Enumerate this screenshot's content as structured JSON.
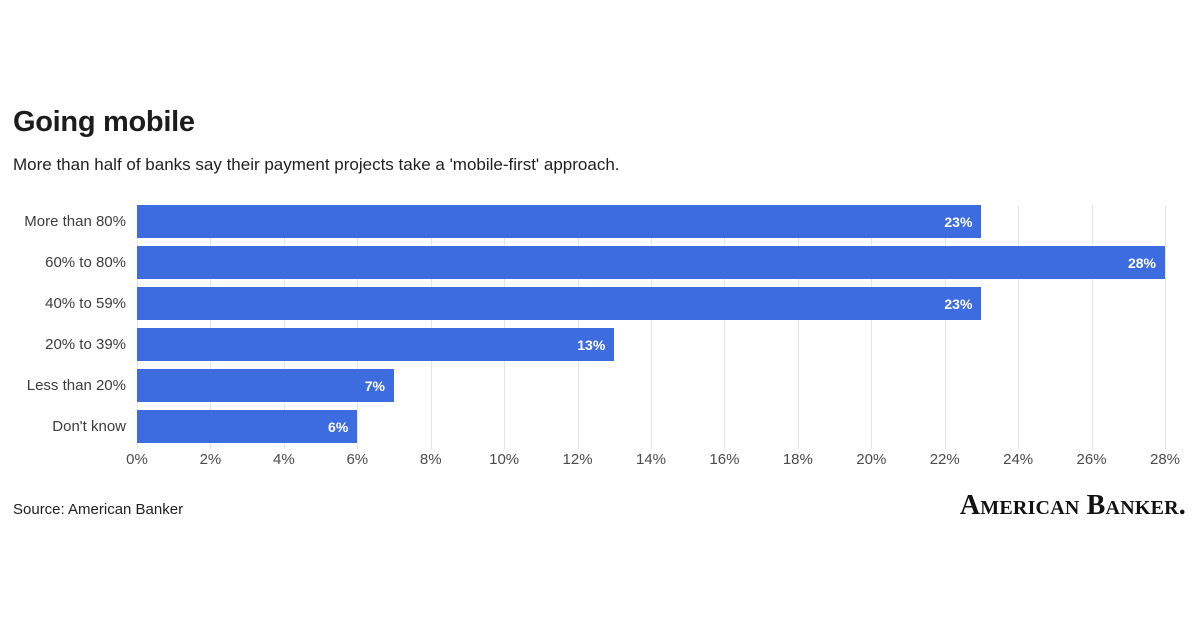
{
  "chart_data": {
    "type": "bar",
    "orientation": "horizontal",
    "title": "Going mobile",
    "subtitle": "More than half of banks say their payment projects take a 'mobile-first' approach.",
    "categories": [
      "More than 80%",
      "60% to 80%",
      "40% to 59%",
      "20% to 39%",
      "Less than 20%",
      "Don't know"
    ],
    "values": [
      23,
      28,
      23,
      13,
      7,
      6
    ],
    "value_labels": [
      "23%",
      "28%",
      "23%",
      "13%",
      "7%",
      "6%"
    ],
    "xlim": [
      0,
      28
    ],
    "x_ticks": [
      "0%",
      "2%",
      "4%",
      "6%",
      "8%",
      "10%",
      "12%",
      "14%",
      "16%",
      "18%",
      "20%",
      "22%",
      "24%",
      "26%",
      "28%"
    ],
    "bar_color": "#3d6be0",
    "grid": true,
    "legend": "none"
  },
  "footer": {
    "source": "Source: American Banker",
    "logo": "American Banker."
  }
}
